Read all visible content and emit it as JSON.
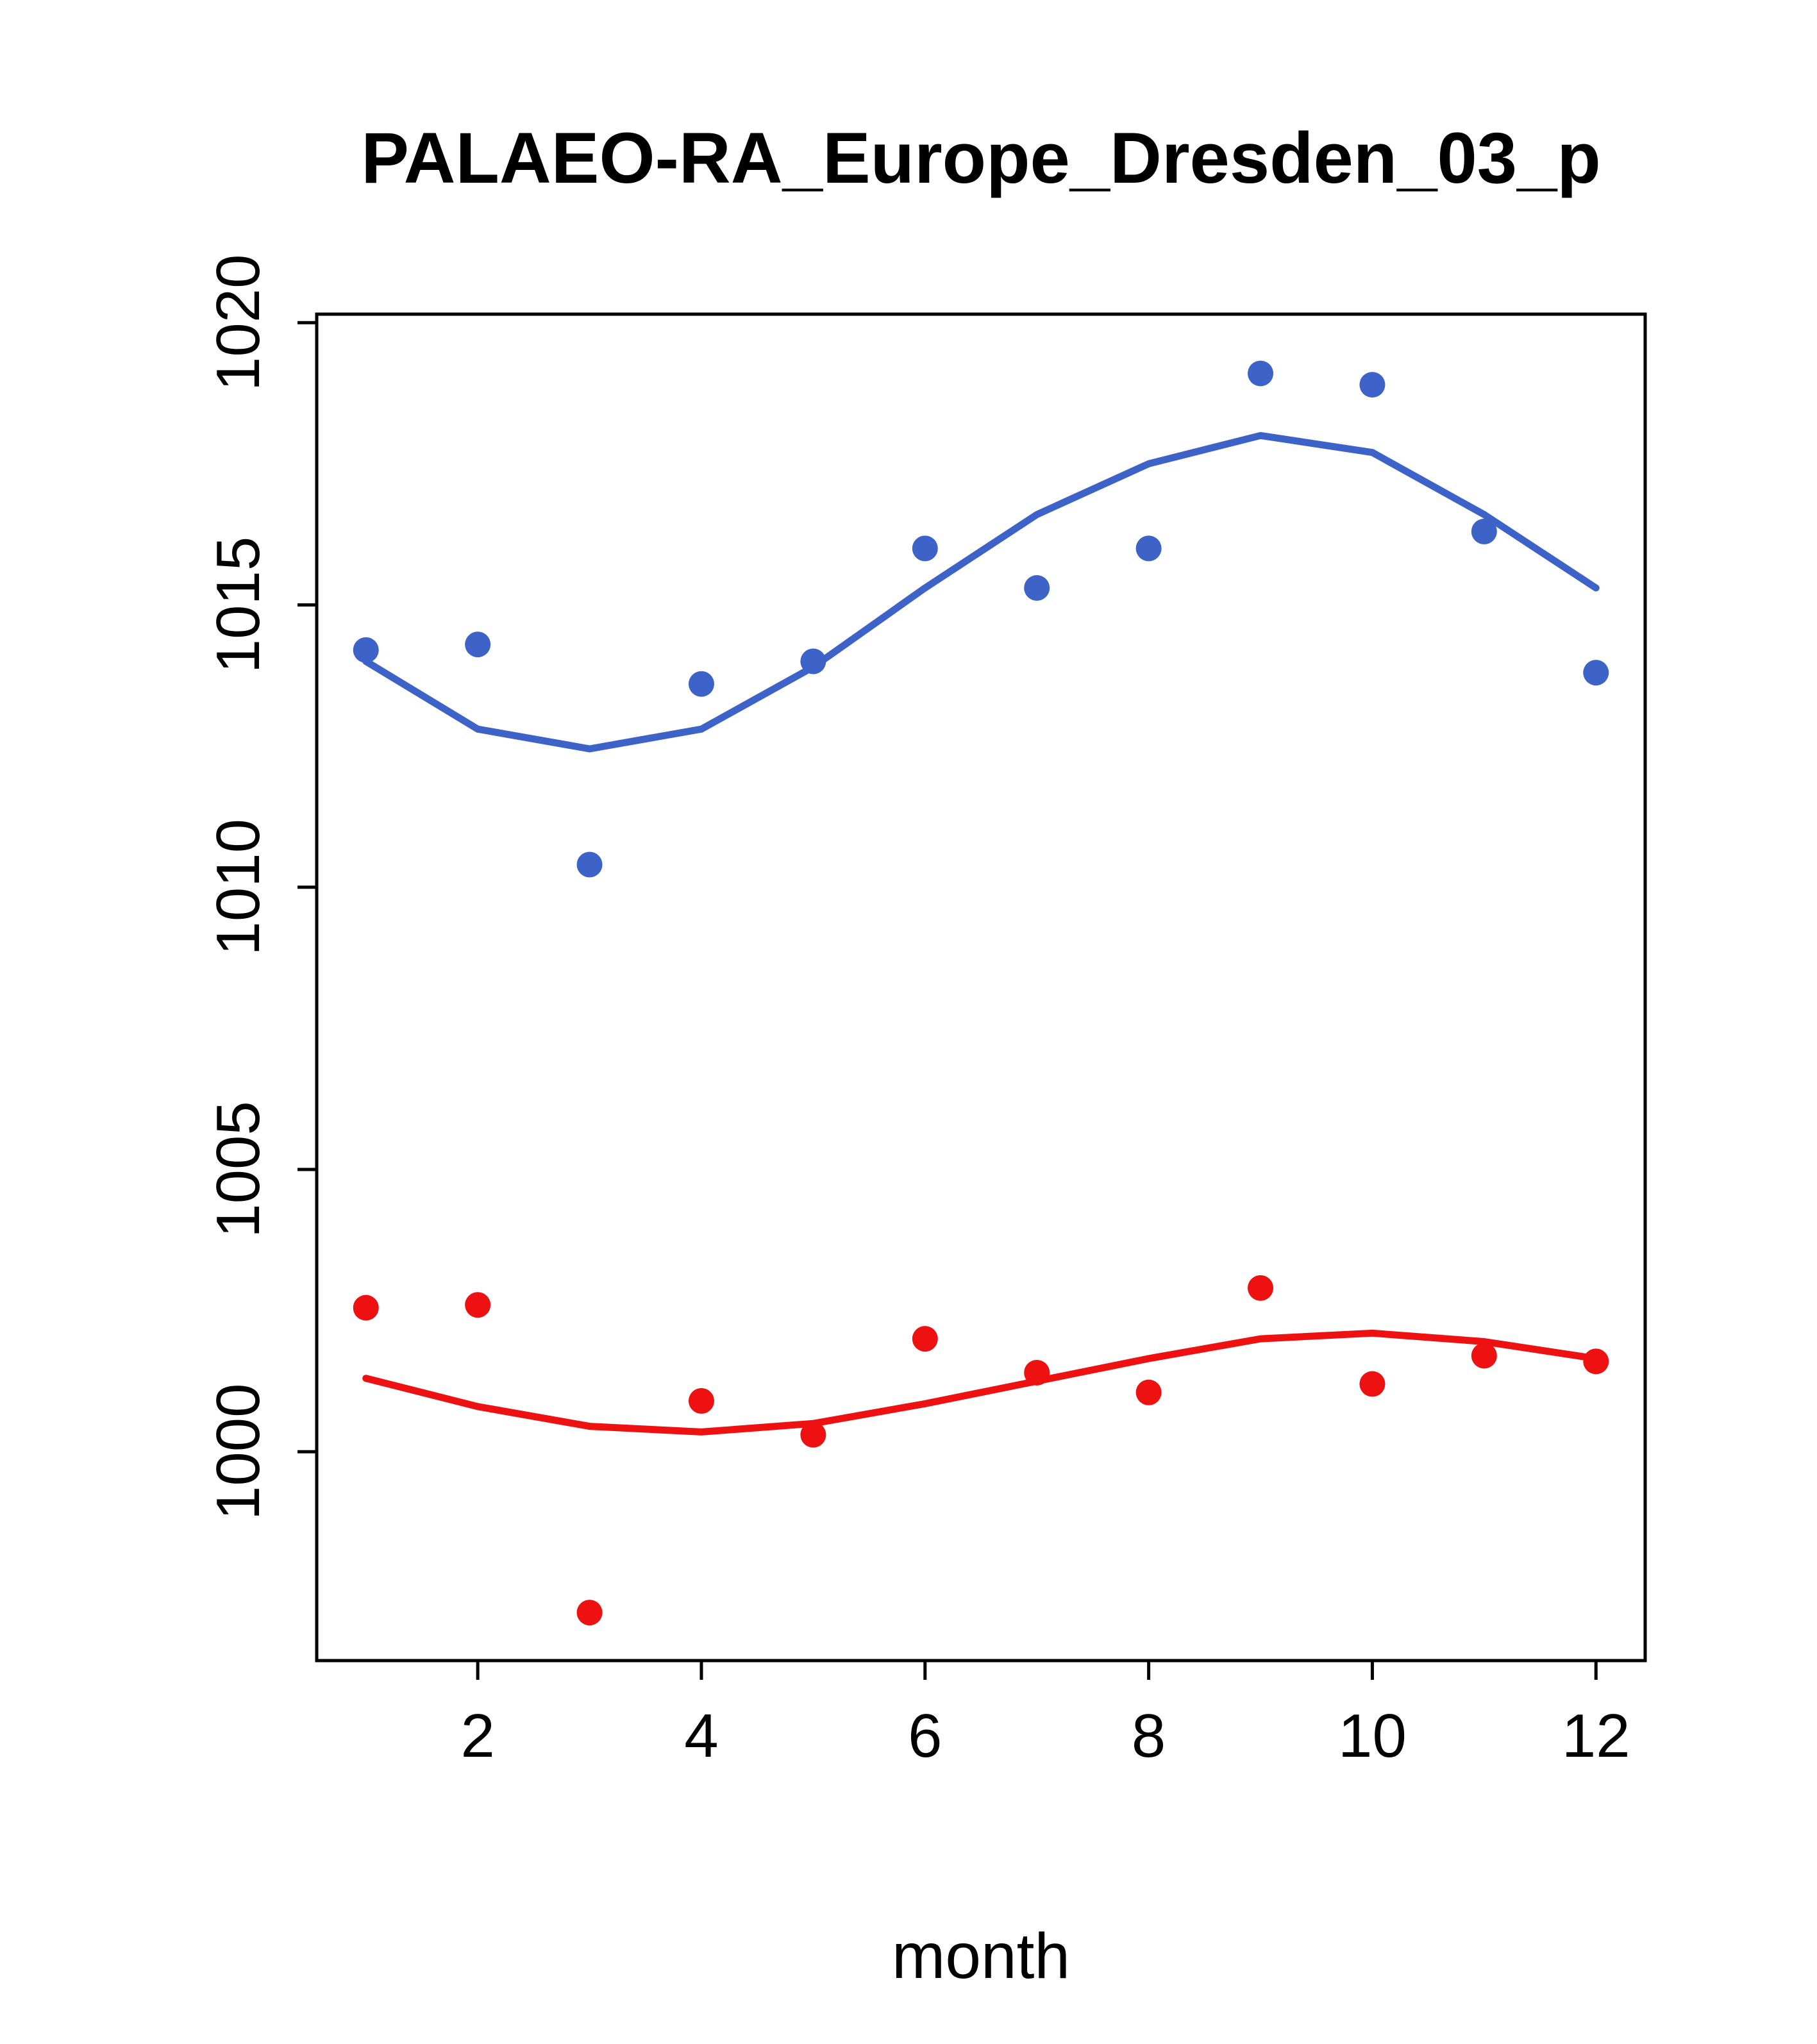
{
  "chart_data": {
    "type": "scatter",
    "title": "PALAEO-RA_Europe_Dresden_03_p",
    "xlabel": "month",
    "ylabel": "",
    "xlim": [
      0.56,
      12.44
    ],
    "ylim": [
      996.3,
      1020.15
    ],
    "x_ticks": [
      2,
      4,
      6,
      8,
      10,
      12
    ],
    "y_ticks": [
      1000,
      1005,
      1010,
      1015,
      1020
    ],
    "grid": false,
    "legend": "none",
    "x": [
      1,
      2,
      3,
      4,
      5,
      6,
      7,
      8,
      9,
      10,
      11,
      12
    ],
    "series": [
      {
        "name": "blue-observations",
        "kind": "points",
        "color": "#3D63C9",
        "values": [
          1014.2,
          1014.3,
          1010.4,
          1013.6,
          1014.0,
          1016.0,
          1015.3,
          1016.0,
          1019.1,
          1018.9,
          1016.3,
          1013.8
        ]
      },
      {
        "name": "blue-smooth-fit",
        "kind": "line",
        "color": "#3D63C9",
        "values": [
          1014.0,
          1012.8,
          1012.45,
          1012.8,
          1013.9,
          1015.3,
          1016.6,
          1017.5,
          1018.0,
          1017.7,
          1016.6,
          1015.3
        ]
      },
      {
        "name": "red-observations",
        "kind": "points",
        "color": "#EE1111",
        "values": [
          1002.55,
          1002.6,
          997.15,
          1000.9,
          1000.3,
          1002.0,
          1001.4,
          1001.05,
          1002.9,
          1001.2,
          1001.7,
          1001.6
        ]
      },
      {
        "name": "red-smooth-fit",
        "kind": "line",
        "color": "#EE1111",
        "values": [
          1001.3,
          1000.8,
          1000.45,
          1000.35,
          1000.5,
          1000.85,
          1001.25,
          1001.65,
          1002.0,
          1002.1,
          1001.95,
          1001.65
        ]
      }
    ]
  }
}
